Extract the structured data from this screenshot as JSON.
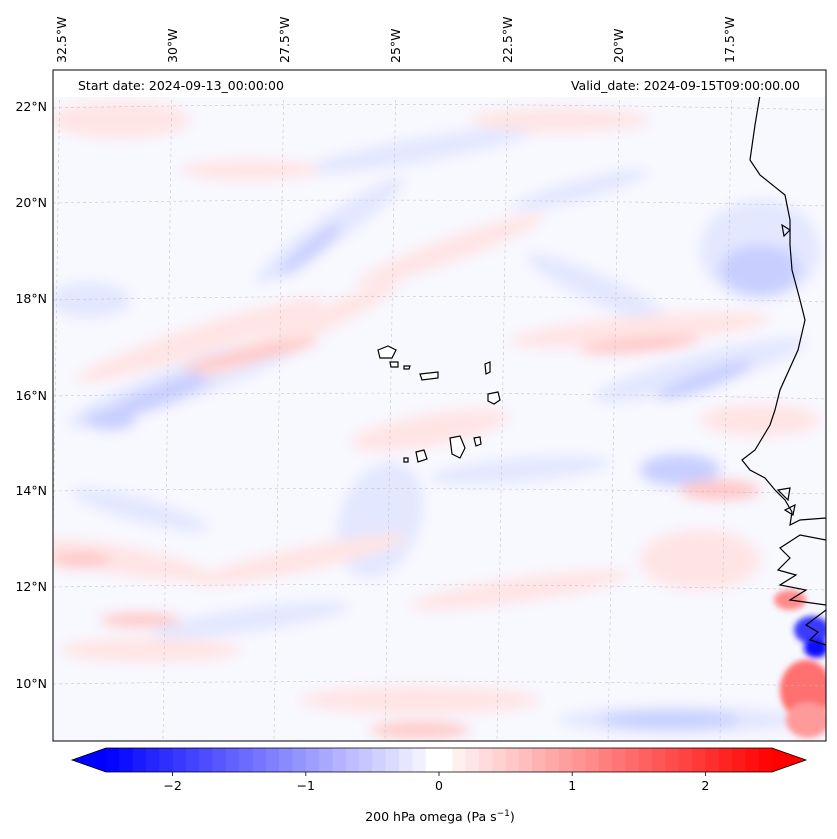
{
  "map": {
    "start_date": "Start date: 2024-09-13_00:00:00",
    "valid_date": "Valid_date: 2024-09-15T09:00:00.00",
    "lon_ticks": [
      {
        "label": "32.5°W",
        "lon": -32.5
      },
      {
        "label": "30°W",
        "lon": -30
      },
      {
        "label": "27.5°W",
        "lon": -27.5
      },
      {
        "label": "25°W",
        "lon": -25
      },
      {
        "label": "22.5°W",
        "lon": -22.5
      },
      {
        "label": "20°W",
        "lon": -20
      },
      {
        "label": "17.5°W",
        "lon": -17.5
      }
    ],
    "lat_ticks": [
      {
        "label": "22°N",
        "lat": 22
      },
      {
        "label": "20°N",
        "lat": 20
      },
      {
        "label": "18°N",
        "lat": 18
      },
      {
        "label": "16°N",
        "lat": 16
      },
      {
        "label": "14°N",
        "lat": 14
      },
      {
        "label": "12°N",
        "lat": 12
      },
      {
        "label": "10°N",
        "lat": 10
      }
    ]
  },
  "colorbar": {
    "label": "200 hPa omega (Pa s",
    "label_sup": "−1",
    "label_end": ")",
    "range": [
      -2.5,
      2.5
    ],
    "ticks": [
      {
        "label": "−2",
        "value": -2
      },
      {
        "label": "−1",
        "value": -1
      },
      {
        "label": "0",
        "value": 0
      },
      {
        "label": "1",
        "value": 1
      },
      {
        "label": "2",
        "value": 2
      }
    ]
  },
  "colors": {
    "negative": "#0000ff",
    "neutral": "#ffffff",
    "positive": "#ff0000",
    "coastline": "#000000"
  }
}
